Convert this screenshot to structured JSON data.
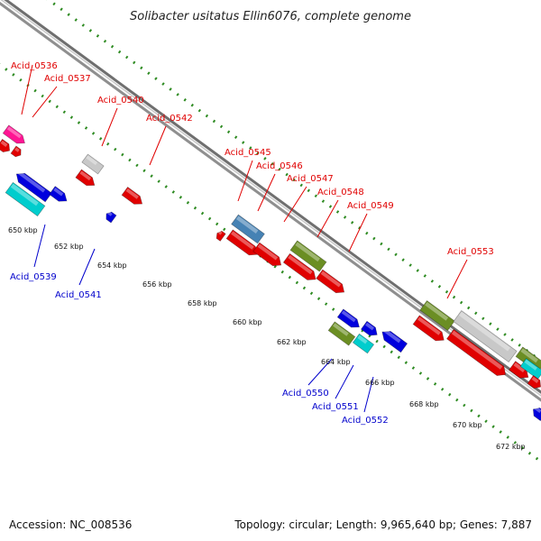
{
  "title": "Solibacter usitatus Ellin6076, complete genome",
  "footer": {
    "accession": "Accession: NC_008536",
    "info": "Topology: circular; Length: 9,965,640 bp; Genes: 7,887"
  },
  "colors": {
    "forward_label": "#e00000",
    "reverse_label": "#0000cc",
    "backbone": "#8f8f8f",
    "track_dots": "#2e8b22"
  },
  "kbp_ticks": [
    "650 kbp",
    "652 kbp",
    "654 kbp",
    "656 kbp",
    "658 kbp",
    "660 kbp",
    "662 kbp",
    "664 kbp",
    "666 kbp",
    "668 kbp",
    "670 kbp",
    "672 kbp"
  ],
  "forward_labels": [
    "Acid_0536",
    "Acid_0537",
    "Acid_0540",
    "Acid_0542",
    "Acid_0545",
    "Acid_0546",
    "Acid_0547",
    "Acid_0548",
    "Acid_0549",
    "Acid_0553"
  ],
  "reverse_labels": [
    "Acid_0539",
    "Acid_0541",
    "Acid_0550",
    "Acid_0551",
    "Acid_0552"
  ]
}
